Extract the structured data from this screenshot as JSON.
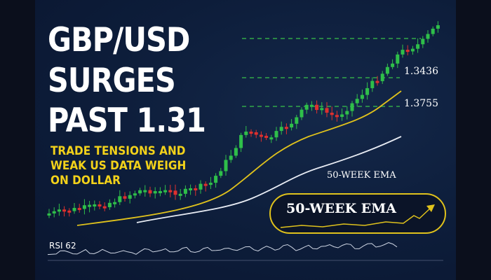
{
  "headline": [
    "GBP/USD",
    "SURGES",
    "PAST 1.31"
  ],
  "subheadline": "TRADE TENSIONS AND WEAK US DATA WEIGH ON DOLLAR",
  "levels": [
    "1.3436",
    "1.3755"
  ],
  "ema_label": "50-WEEK EMA",
  "badge_label": "50-WEEK EMA",
  "rsi_label": "RSI 62"
}
